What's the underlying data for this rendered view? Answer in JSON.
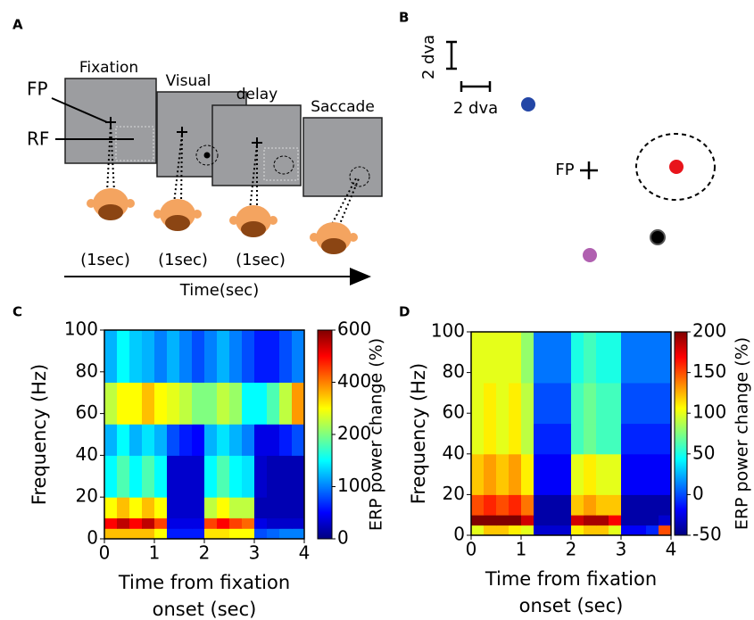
{
  "panel_a": {
    "label": "A",
    "screens": [
      "Fixation",
      "Visual",
      "delay",
      "Saccade"
    ],
    "fp": "FP",
    "rf": "RF",
    "durations": [
      "(1sec)",
      "(1sec)",
      "(1sec)"
    ],
    "axis_label": "Time(sec)"
  },
  "panel_b": {
    "label": "B",
    "scale_vertical": "2 dva",
    "scale_horizontal": "2 dva",
    "fp": "FP"
  },
  "chart_data": [
    {
      "type": "heatmap",
      "label": "C",
      "ylabel": "Frequency (Hz)",
      "xlabel": "Time from fixation onset (sec)",
      "colorbar_label": "ERP power change  (%)",
      "xlim": [
        0,
        4
      ],
      "xticks": [
        0,
        1,
        2,
        3,
        4
      ],
      "ylim": [
        0,
        100
      ],
      "yticks": [
        0,
        20,
        40,
        60,
        80,
        100
      ],
      "cticks": [
        0,
        100,
        200,
        400,
        600
      ],
      "xedges": [
        0,
        0.25,
        0.5,
        0.75,
        1,
        1.25,
        1.5,
        1.75,
        2,
        2.25,
        2.5,
        2.75,
        3,
        3.25,
        3.5,
        3.75,
        4
      ],
      "yedges": [
        0,
        5,
        10,
        20,
        40,
        55,
        75,
        100
      ],
      "z": [
        [
          350,
          350,
          350,
          350,
          300,
          60,
          60,
          60,
          320,
          320,
          300,
          300,
          80,
          90,
          100,
          100
        ],
        [
          500,
          550,
          500,
          550,
          450,
          40,
          40,
          40,
          450,
          500,
          450,
          420,
          40,
          30,
          30,
          30
        ],
        [
          300,
          350,
          300,
          350,
          300,
          30,
          30,
          30,
          250,
          300,
          250,
          250,
          20,
          20,
          20,
          20
        ],
        [
          150,
          180,
          150,
          180,
          150,
          30,
          30,
          30,
          150,
          180,
          150,
          140,
          30,
          20,
          20,
          20
        ],
        [
          120,
          150,
          120,
          140,
          120,
          80,
          60,
          50,
          120,
          140,
          120,
          100,
          40,
          40,
          60,
          80
        ],
        [
          250,
          300,
          300,
          350,
          300,
          280,
          250,
          200,
          200,
          250,
          220,
          150,
          150,
          180,
          250,
          380
        ],
        [
          120,
          150,
          130,
          120,
          100,
          120,
          100,
          80,
          100,
          120,
          100,
          80,
          60,
          60,
          80,
          100
        ]
      ]
    },
    {
      "type": "heatmap",
      "label": "D",
      "ylabel": "Frequency (Hz)",
      "xlabel": "Time from fixation onset (sec)",
      "colorbar_label": "ERP power change  (%)",
      "xlim": [
        0,
        4
      ],
      "xticks": [
        0,
        1,
        2,
        3,
        4
      ],
      "ylim": [
        0,
        100
      ],
      "yticks": [
        0,
        20,
        40,
        60,
        80,
        100
      ],
      "cticks": [
        -50,
        0,
        50,
        100,
        150,
        200
      ],
      "xedges": [
        0,
        0.25,
        0.5,
        0.75,
        1,
        1.25,
        1.5,
        1.75,
        2,
        2.25,
        2.5,
        2.75,
        3,
        3.25,
        3.5,
        3.75,
        4
      ],
      "yedges": [
        0,
        5,
        10,
        20,
        40,
        55,
        75,
        100
      ],
      "z": [
        [
          100,
          120,
          120,
          110,
          100,
          -30,
          -30,
          -30,
          110,
          120,
          120,
          100,
          -20,
          -20,
          -10,
          150
        ],
        [
          200,
          200,
          200,
          200,
          180,
          -40,
          -40,
          -40,
          180,
          190,
          190,
          170,
          -40,
          -40,
          -40,
          -30
        ],
        [
          150,
          160,
          150,
          160,
          140,
          -40,
          -40,
          -40,
          120,
          130,
          120,
          120,
          -40,
          -40,
          -40,
          -40
        ],
        [
          120,
          130,
          120,
          130,
          110,
          -20,
          -20,
          -20,
          100,
          110,
          100,
          100,
          -20,
          -20,
          -20,
          -20
        ],
        [
          100,
          110,
          100,
          110,
          90,
          -10,
          -10,
          -10,
          60,
          70,
          60,
          60,
          -10,
          -10,
          -10,
          -10
        ],
        [
          100,
          110,
          100,
          110,
          90,
          0,
          0,
          0,
          60,
          70,
          60,
          60,
          0,
          0,
          0,
          0
        ],
        [
          100,
          100,
          100,
          100,
          80,
          10,
          10,
          10,
          50,
          60,
          50,
          50,
          10,
          10,
          10,
          10
        ]
      ]
    }
  ]
}
